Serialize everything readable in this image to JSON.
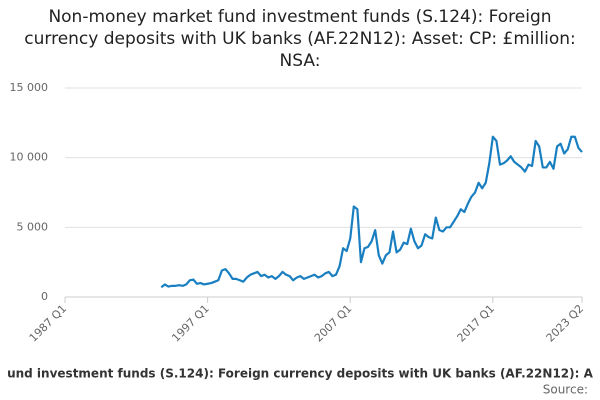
{
  "chart_data": {
    "type": "line",
    "title": "Non-money market fund investment funds (S.124): Foreign currency deposits with UK banks (AF.22N12): Asset: CP: £million: NSA:",
    "legend_text": "und investment funds (S.124): Foreign currency deposits with UK banks (AF.22N12): A",
    "source": "Source:",
    "categories": [
      "1987 Q1",
      null,
      null,
      null,
      null,
      null,
      null,
      null,
      null,
      null,
      null,
      null,
      null,
      null,
      null,
      null,
      null,
      null,
      null,
      null,
      null,
      null,
      null,
      null,
      null,
      null,
      null,
      null,
      null,
      null,
      null,
      null,
      null,
      null,
      null,
      null,
      null,
      null,
      null,
      null,
      "1997 Q1",
      null,
      null,
      null,
      null,
      null,
      null,
      null,
      null,
      null,
      null,
      null,
      null,
      null,
      null,
      null,
      null,
      null,
      null,
      null,
      null,
      null,
      null,
      null,
      null,
      null,
      null,
      null,
      null,
      null,
      null,
      null,
      null,
      null,
      null,
      null,
      null,
      null,
      null,
      null,
      "2007 Q1",
      null,
      null,
      null,
      null,
      null,
      null,
      null,
      null,
      null,
      null,
      null,
      null,
      null,
      null,
      null,
      null,
      null,
      null,
      null,
      null,
      null,
      null,
      null,
      null,
      null,
      null,
      null,
      null,
      null,
      null,
      null,
      null,
      null,
      null,
      null,
      null,
      null,
      null,
      null,
      "2017 Q1",
      null,
      null,
      null,
      null,
      null,
      null,
      null,
      null,
      null,
      null,
      null,
      null,
      null,
      null,
      null,
      null,
      null,
      null,
      null,
      null,
      null,
      null,
      null,
      null,
      "2023 Q2"
    ],
    "values": [
      null,
      null,
      null,
      null,
      null,
      null,
      null,
      null,
      null,
      null,
      null,
      null,
      null,
      null,
      null,
      null,
      null,
      null,
      null,
      null,
      null,
      null,
      null,
      null,
      null,
      null,
      null,
      700,
      900,
      750,
      800,
      800,
      850,
      800,
      900,
      1200,
      1250,
      950,
      1000,
      900,
      950,
      1000,
      1100,
      1200,
      1900,
      2000,
      1700,
      1300,
      1300,
      1200,
      1100,
      1400,
      1600,
      1700,
      1800,
      1500,
      1600,
      1400,
      1500,
      1300,
      1500,
      1800,
      1600,
      1500,
      1200,
      1400,
      1500,
      1300,
      1400,
      1500,
      1600,
      1400,
      1500,
      1700,
      1800,
      1500,
      1600,
      2200,
      3500,
      3300,
      4200,
      6500,
      6300,
      2500,
      3500,
      3600,
      4000,
      4800,
      3000,
      2400,
      3000,
      3200,
      4700,
      3200,
      3400,
      3900,
      3800,
      4900,
      4000,
      3500,
      3700,
      4500,
      4300,
      4200,
      5700,
      4800,
      4700,
      5000,
      5000,
      5400,
      5800,
      6300,
      6100,
      6700,
      7200,
      7500,
      8200,
      7800,
      8200,
      9600,
      11500,
      11200,
      9500,
      9600,
      9800,
      10100,
      9700,
      9500,
      9300,
      9000,
      9500,
      9400,
      11200,
      10800,
      9300,
      9300,
      9700,
      9200,
      10800,
      11000,
      10300,
      10600,
      11500,
      11500,
      10700,
      10400
    ],
    "color": "#1a7fc1",
    "ylim": [
      0,
      15000
    ],
    "yticks": [
      0,
      {
        "value": 5000,
        "label": "5 000"
      },
      {
        "value": 10000,
        "label": "10 000"
      },
      {
        "value": 15000,
        "label": "15 000"
      }
    ],
    "grid": true
  }
}
